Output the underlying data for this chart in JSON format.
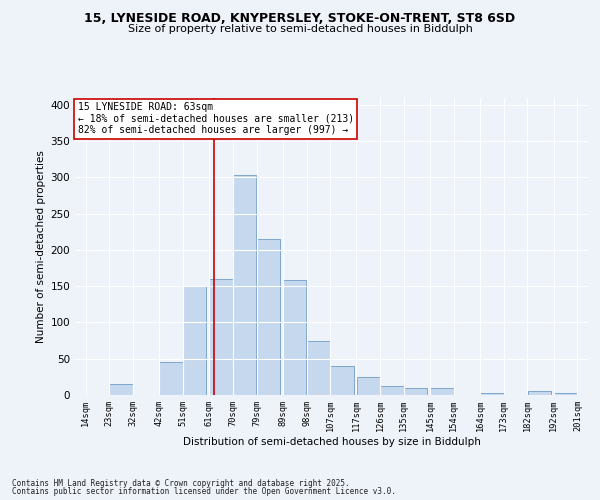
{
  "title1": "15, LYNESIDE ROAD, KNYPERSLEY, STOKE-ON-TRENT, ST8 6SD",
  "title2": "Size of property relative to semi-detached houses in Biddulph",
  "xlabel": "Distribution of semi-detached houses by size in Biddulph",
  "ylabel": "Number of semi-detached properties",
  "footer1": "Contains HM Land Registry data © Crown copyright and database right 2025.",
  "footer2": "Contains public sector information licensed under the Open Government Licence v3.0.",
  "annotation_title": "15 LYNESIDE ROAD: 63sqm",
  "annotation_line1": "← 18% of semi-detached houses are smaller (213)",
  "annotation_line2": "82% of semi-detached houses are larger (997) →",
  "property_size": 63,
  "bar_left_edges": [
    14,
    23,
    32,
    42,
    51,
    61,
    70,
    79,
    89,
    98,
    107,
    117,
    126,
    135,
    145,
    154,
    164,
    173,
    182,
    192
  ],
  "bar_widths": [
    9,
    9,
    9,
    9,
    9,
    9,
    9,
    9,
    9,
    9,
    9,
    9,
    9,
    9,
    9,
    9,
    9,
    9,
    9,
    9
  ],
  "bar_heights": [
    0,
    15,
    0,
    45,
    150,
    160,
    303,
    215,
    158,
    75,
    40,
    25,
    12,
    9,
    9,
    0,
    3,
    0,
    5,
    3
  ],
  "tick_labels": [
    "14sqm",
    "23sqm",
    "32sqm",
    "42sqm",
    "51sqm",
    "61sqm",
    "70sqm",
    "79sqm",
    "89sqm",
    "98sqm",
    "107sqm",
    "117sqm",
    "126sqm",
    "135sqm",
    "145sqm",
    "154sqm",
    "164sqm",
    "173sqm",
    "182sqm",
    "192sqm",
    "201sqm"
  ],
  "tick_positions": [
    14,
    23,
    32,
    42,
    51,
    61,
    70,
    79,
    89,
    98,
    107,
    117,
    126,
    135,
    145,
    154,
    164,
    173,
    182,
    192,
    201
  ],
  "bar_color": "#c5d8ed",
  "bar_edge_color": "#5a8fc0",
  "vline_color": "#cc0000",
  "vline_x": 63,
  "ylim": [
    0,
    410
  ],
  "xlim": [
    10,
    205
  ],
  "bg_color": "#eef2f9",
  "grid_color": "#ffffff",
  "annotation_box_color": "#ffffff",
  "annotation_box_edge": "#cc0000",
  "yticks": [
    0,
    50,
    100,
    150,
    200,
    250,
    300,
    350,
    400
  ]
}
